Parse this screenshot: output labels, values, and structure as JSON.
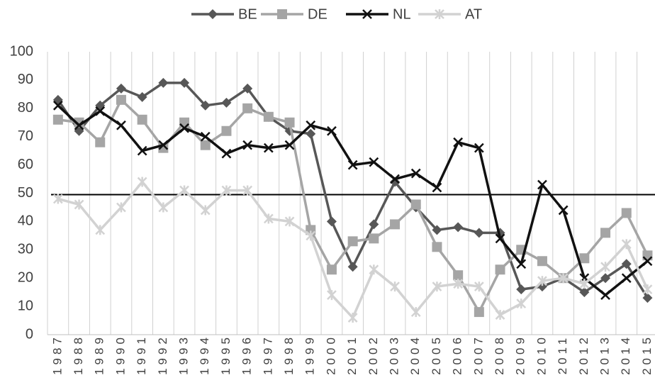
{
  "chart_data": {
    "type": "line",
    "categories": [
      "1987",
      "1988",
      "1989",
      "1990",
      "1991",
      "1992",
      "1993",
      "1994",
      "1995",
      "1996",
      "1997",
      "1998",
      "1999",
      "2000",
      "2001",
      "2002",
      "2003",
      "2004",
      "2005",
      "2006",
      "2007",
      "2008",
      "2009",
      "2010",
      "2011",
      "2012",
      "2013",
      "2014",
      "2015"
    ],
    "series": [
      {
        "name": "BE",
        "color": "#575757",
        "marker": "diamond",
        "values": [
          83,
          72,
          81,
          87,
          84,
          89,
          89,
          81,
          82,
          87,
          77,
          72,
          71,
          40,
          24,
          39,
          54,
          45,
          37,
          38,
          36,
          36,
          16,
          17,
          20,
          15,
          20,
          25,
          13
        ]
      },
      {
        "name": "DE",
        "color": "#a5a5a5",
        "marker": "square",
        "values": [
          76,
          75,
          68,
          83,
          76,
          66,
          75,
          67,
          72,
          80,
          77,
          75,
          37,
          23,
          33,
          34,
          39,
          46,
          31,
          21,
          8,
          23,
          30,
          26,
          20,
          27,
          36,
          43,
          28
        ]
      },
      {
        "name": "NL",
        "color": "#111111",
        "marker": "x",
        "values": [
          81,
          74,
          79,
          74,
          65,
          67,
          73,
          70,
          64,
          67,
          66,
          67,
          74,
          72,
          60,
          61,
          55,
          57,
          52,
          68,
          66,
          34,
          25,
          53,
          44,
          20,
          14,
          20,
          26
        ]
      },
      {
        "name": "AT",
        "color": "#d2d2d2",
        "marker": "star",
        "values": [
          48,
          46,
          37,
          45,
          54,
          45,
          51,
          44,
          51,
          51,
          41,
          40,
          35,
          14,
          6,
          23,
          17,
          8,
          17,
          18,
          17,
          7,
          11,
          19,
          20,
          18,
          24,
          32,
          16
        ]
      }
    ],
    "reference_line": 49.5,
    "ylim": [
      0,
      100
    ],
    "yticks": [
      0,
      10,
      20,
      30,
      40,
      50,
      60,
      70,
      80,
      90,
      100
    ],
    "grid": "vertical",
    "legend": "top"
  }
}
